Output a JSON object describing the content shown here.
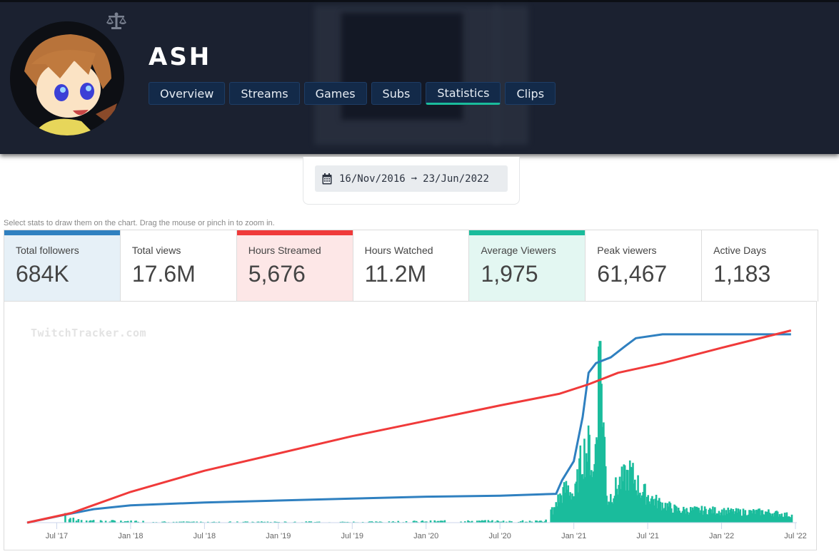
{
  "channel": {
    "name": "ASH",
    "badge_icon": "scale-balance-icon"
  },
  "tabs": [
    {
      "label": "Overview",
      "active": false
    },
    {
      "label": "Streams",
      "active": false
    },
    {
      "label": "Games",
      "active": false
    },
    {
      "label": "Subs",
      "active": false
    },
    {
      "label": "Statistics",
      "active": true
    },
    {
      "label": "Clips",
      "active": false
    }
  ],
  "date_range": {
    "icon": "calendar-icon",
    "start": "16/Nov/2016",
    "arrow": "➞",
    "end": "23/Jun/2022"
  },
  "hint": "Select stats to draw them on the chart. Drag the mouse or pinch in to zoom in.",
  "stats": [
    {
      "label": "Total followers",
      "value": "684K",
      "selected": true,
      "color": "#2f80c0",
      "bg": "#e6f0f7"
    },
    {
      "label": "Total views",
      "value": "17.6M",
      "selected": false,
      "color": "",
      "bg": "#ffffff"
    },
    {
      "label": "Hours Streamed",
      "value": "5,676",
      "selected": true,
      "color": "#f03a3a",
      "bg": "#fde7e7"
    },
    {
      "label": "Hours Watched",
      "value": "11.2M",
      "selected": false,
      "color": "",
      "bg": "#ffffff"
    },
    {
      "label": "Average Viewers",
      "value": "1,975",
      "selected": true,
      "color": "#1abc9c",
      "bg": "#e3f7f2"
    },
    {
      "label": "Peak viewers",
      "value": "61,467",
      "selected": false,
      "color": "",
      "bg": "#ffffff"
    },
    {
      "label": "Active Days",
      "value": "1,183",
      "selected": false,
      "color": "",
      "bg": "#ffffff"
    }
  ],
  "colors": {
    "followers": "#2f80c0",
    "hours_streamed": "#f03a3a",
    "avg_viewers": "#1abc9c",
    "header_bg": "#1b2130",
    "tab_bg": "#132a49"
  },
  "chart_data": {
    "type": "line",
    "watermark": "TwitchTracker.com",
    "x_range": [
      "2017-04",
      "2022-06"
    ],
    "x_ticks": [
      "Jul '17",
      "Jan '18",
      "Jul '18",
      "Jan '19",
      "Jul '19",
      "Jan '20",
      "Jul '20",
      "Jan '21",
      "Jul '21",
      "Jan '22",
      "Jul '22"
    ],
    "grid": false,
    "legend": "none",
    "series": [
      {
        "name": "Total followers",
        "type": "line",
        "color": "#2f80c0",
        "unit": "fraction of max (684K)",
        "points": [
          [
            2017.3,
            0.0
          ],
          [
            2017.55,
            0.04
          ],
          [
            2017.75,
            0.07
          ],
          [
            2018.0,
            0.09
          ],
          [
            2018.5,
            0.105
          ],
          [
            2019.0,
            0.115
          ],
          [
            2019.5,
            0.125
          ],
          [
            2020.0,
            0.135
          ],
          [
            2020.5,
            0.14
          ],
          [
            2020.88,
            0.15
          ],
          [
            2020.92,
            0.22
          ],
          [
            2021.0,
            0.32
          ],
          [
            2021.06,
            0.55
          ],
          [
            2021.1,
            0.78
          ],
          [
            2021.15,
            0.83
          ],
          [
            2021.25,
            0.86
          ],
          [
            2021.35,
            0.92
          ],
          [
            2021.42,
            0.96
          ],
          [
            2021.6,
            0.98
          ],
          [
            2022.0,
            0.98
          ],
          [
            2022.47,
            0.98
          ]
        ]
      },
      {
        "name": "Hours Streamed",
        "type": "line",
        "color": "#f03a3a",
        "unit": "fraction of max (5,676)",
        "points": [
          [
            2017.3,
            0.0
          ],
          [
            2017.6,
            0.05
          ],
          [
            2018.0,
            0.16
          ],
          [
            2018.5,
            0.27
          ],
          [
            2019.0,
            0.36
          ],
          [
            2019.5,
            0.45
          ],
          [
            2020.0,
            0.53
          ],
          [
            2020.5,
            0.61
          ],
          [
            2020.9,
            0.67
          ],
          [
            2021.1,
            0.72
          ],
          [
            2021.3,
            0.78
          ],
          [
            2021.6,
            0.83
          ],
          [
            2022.0,
            0.91
          ],
          [
            2022.47,
            1.0
          ]
        ]
      },
      {
        "name": "Average Viewers",
        "type": "bar",
        "color": "#1abc9c",
        "unit": "fraction of max (peak spike)",
        "points": [
          [
            2017.55,
            0.05
          ],
          [
            2017.6,
            0.02
          ],
          [
            2017.7,
            0.015
          ],
          [
            2017.9,
            0.01
          ],
          [
            2018.3,
            0.005
          ],
          [
            2019.5,
            0.005
          ],
          [
            2020.2,
            0.01
          ],
          [
            2020.8,
            0.01
          ],
          [
            2020.88,
            0.12
          ],
          [
            2020.95,
            0.2
          ],
          [
            2021.0,
            0.15
          ],
          [
            2021.05,
            0.38
          ],
          [
            2021.1,
            0.42
          ],
          [
            2021.13,
            0.25
          ],
          [
            2021.17,
            1.0
          ],
          [
            2021.22,
            0.12
          ],
          [
            2021.3,
            0.22
          ],
          [
            2021.38,
            0.28
          ],
          [
            2021.45,
            0.18
          ],
          [
            2021.55,
            0.12
          ],
          [
            2021.7,
            0.07
          ],
          [
            2021.9,
            0.07
          ],
          [
            2022.1,
            0.06
          ],
          [
            2022.3,
            0.06
          ],
          [
            2022.47,
            0.04
          ]
        ]
      }
    ]
  }
}
